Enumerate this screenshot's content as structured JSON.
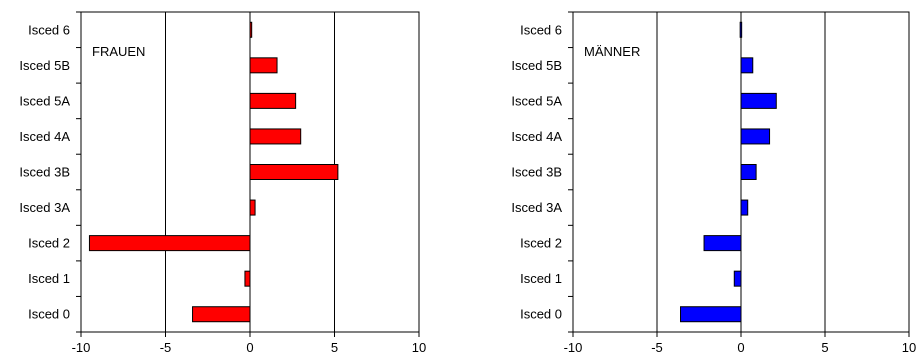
{
  "chart_data": [
    {
      "type": "bar",
      "orientation": "horizontal",
      "panel_label": "FRAUEN",
      "categories": [
        "Isced 6",
        "Isced 5B",
        "Isced 5A",
        "Isced 4A",
        "Isced 3B",
        "Isced 3A",
        "Isced 2",
        "Isced 1",
        "Isced 0"
      ],
      "values": [
        0.1,
        1.6,
        2.7,
        3.0,
        5.2,
        0.3,
        -9.5,
        -0.3,
        -3.4
      ],
      "xlim": [
        -10,
        10
      ],
      "xticks": [
        "-10",
        "-5",
        "0",
        "5",
        "10"
      ],
      "gridlines_x": [
        -5,
        0,
        5
      ],
      "bar_color": "#ff0000"
    },
    {
      "type": "bar",
      "orientation": "horizontal",
      "panel_label": "MÄNNER",
      "categories": [
        "Isced 6",
        "Isced 5B",
        "Isced 5A",
        "Isced 4A",
        "Isced 3B",
        "Isced 3A",
        "Isced 2",
        "Isced 1",
        "Isced 0"
      ],
      "values": [
        -0.05,
        0.7,
        2.1,
        1.7,
        0.9,
        0.4,
        -2.2,
        -0.4,
        -3.6
      ],
      "xlim": [
        -10,
        10
      ],
      "xticks": [
        "-10",
        "-5",
        "0",
        "5",
        "10"
      ],
      "gridlines_x": [
        -5,
        0,
        5
      ],
      "bar_color": "#0000ff"
    }
  ]
}
